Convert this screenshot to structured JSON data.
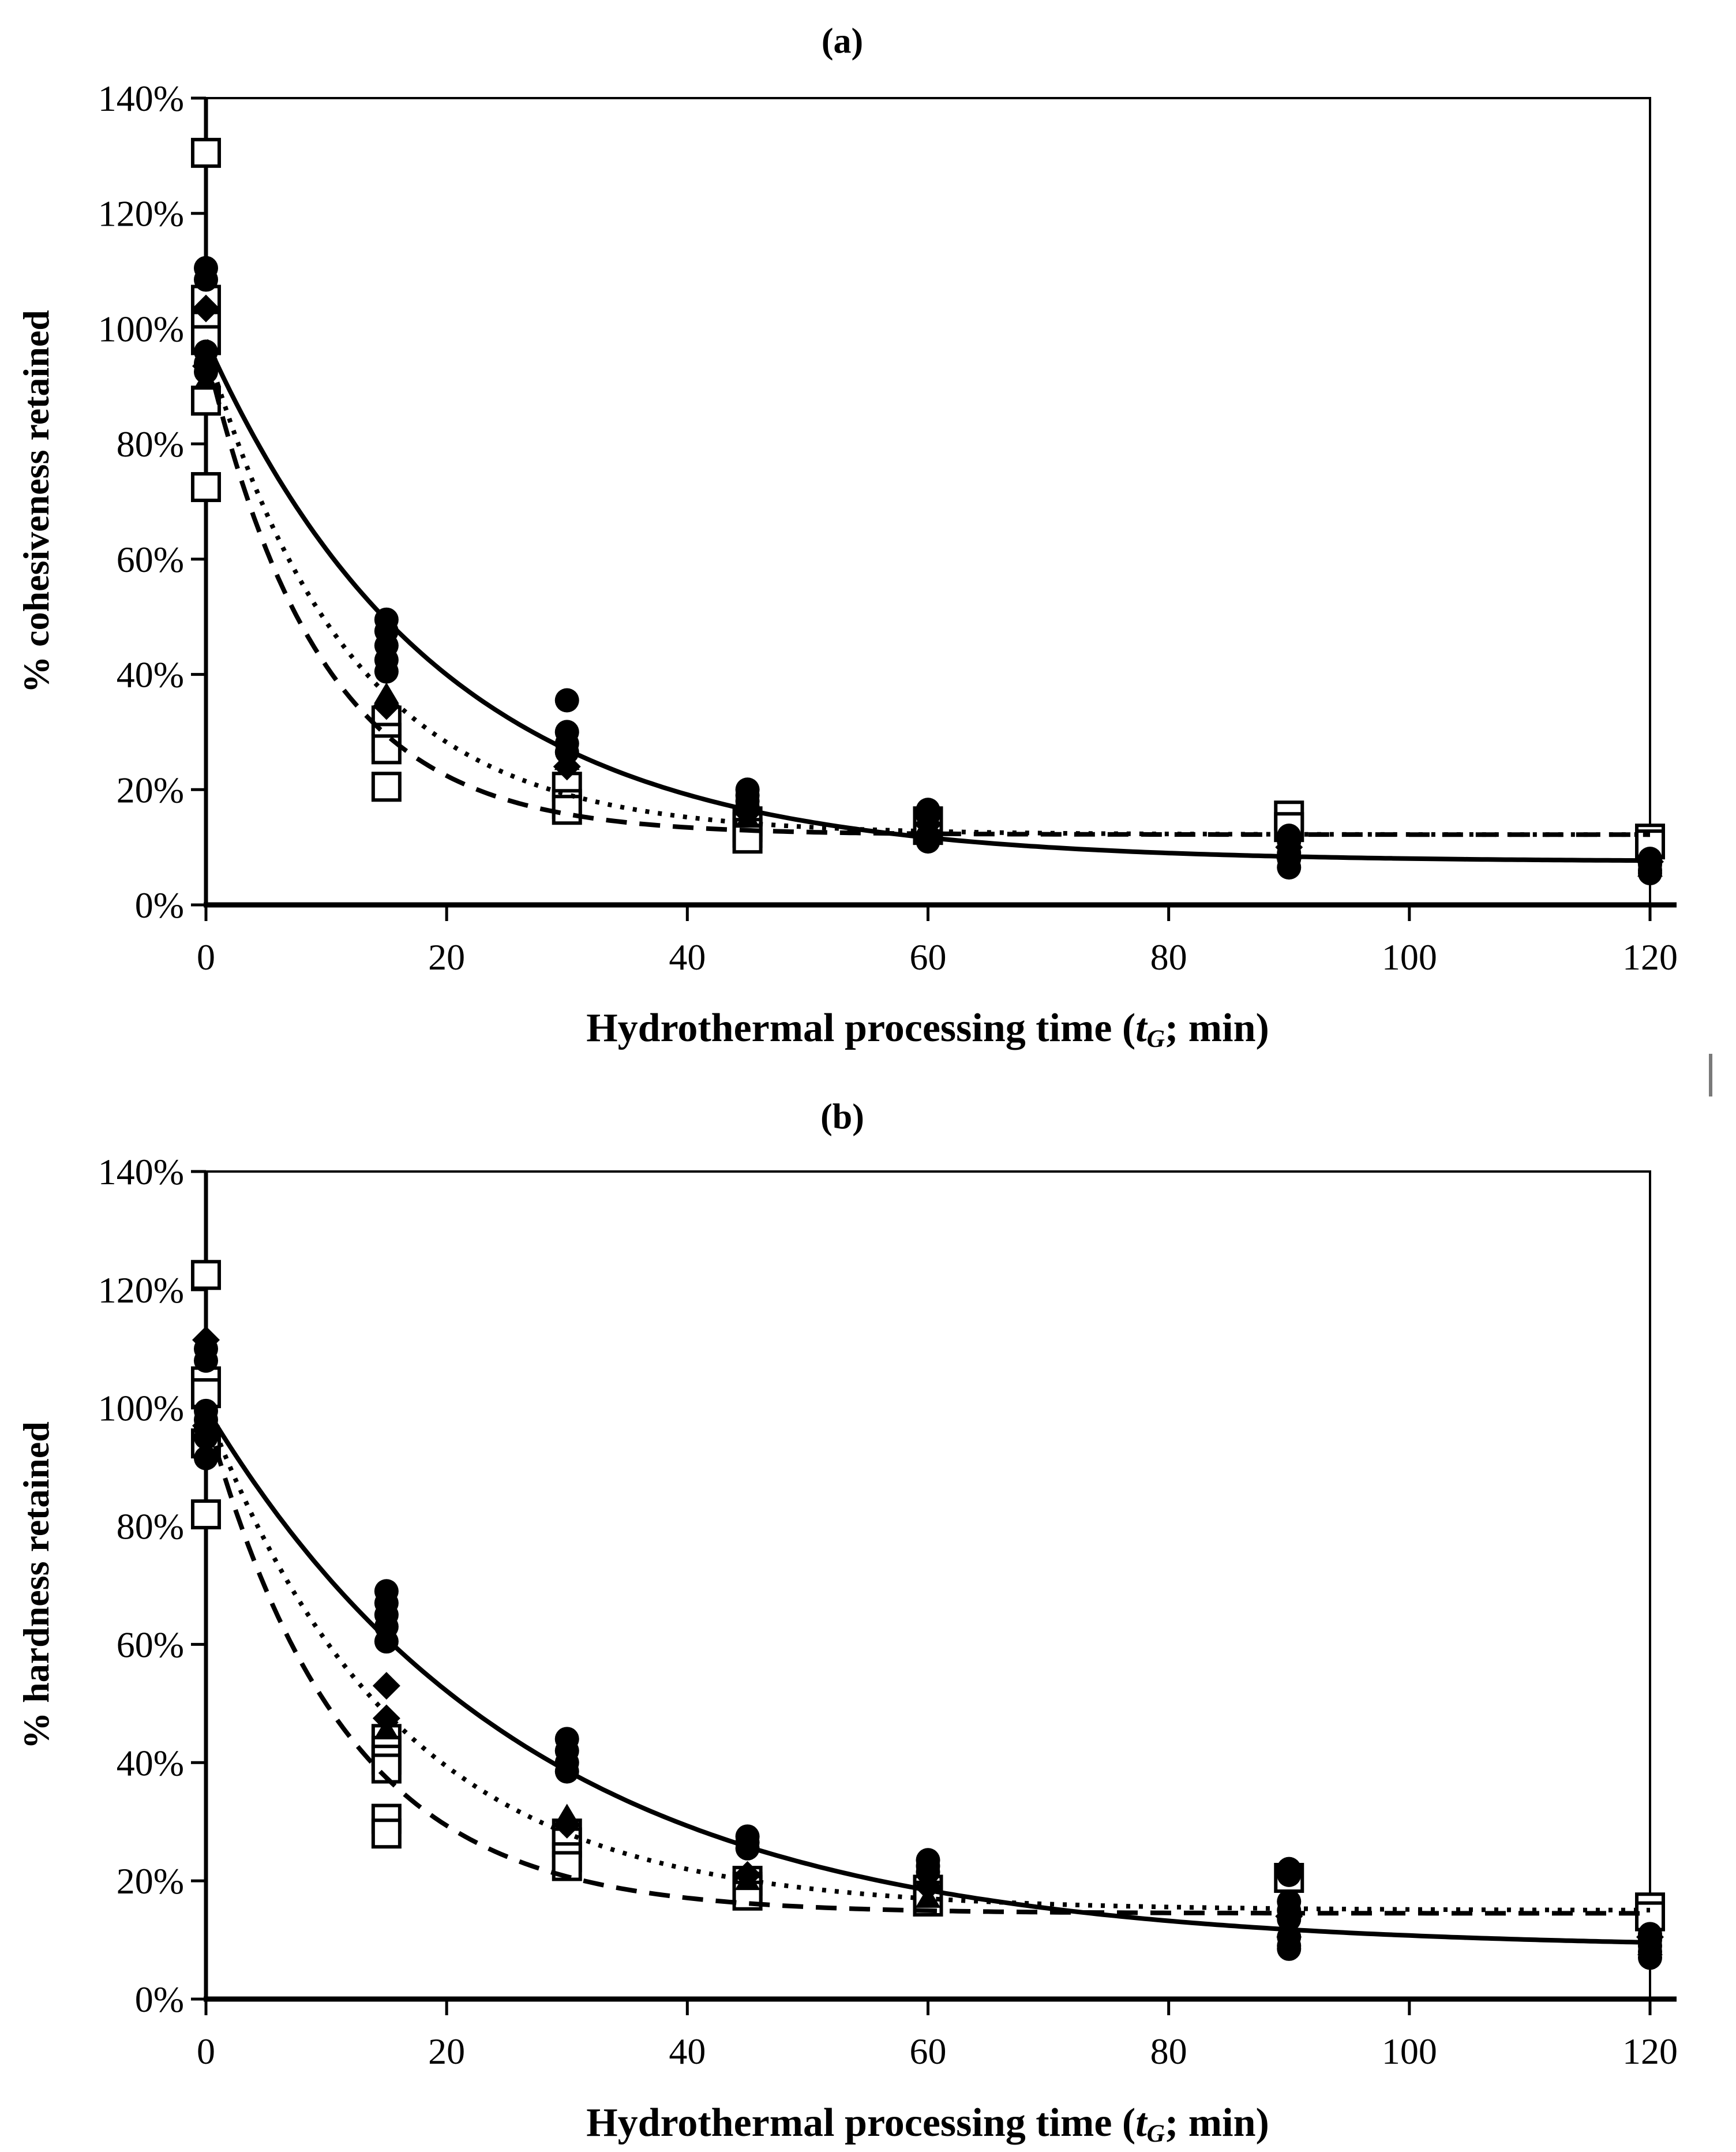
{
  "artifact": {
    "color": "#7a7a7a"
  },
  "colors": {
    "ink": "#000000",
    "background": "#ffffff"
  },
  "chart_data": [
    {
      "id": "a",
      "type": "scatter",
      "panel_label": "(a)",
      "title": "(a)",
      "xlabel": "Hydrothermal processing time (tG; min)",
      "xlabel_parts": {
        "prefix": "Hydrothermal processing time (",
        "var": "t",
        "sub": "G",
        "suffix": "; min)"
      },
      "ylabel": "% cohesiveness retained",
      "xlim": [
        0,
        120
      ],
      "ylim_percent": [
        0,
        140
      ],
      "x_ticks": [
        0,
        20,
        40,
        60,
        80,
        100,
        120
      ],
      "y_ticks": [
        "0%",
        "20%",
        "40%",
        "60%",
        "80%",
        "100%",
        "120%",
        "140%"
      ],
      "grid": false,
      "legend": "none",
      "series": [
        {
          "name": "filled-circle",
          "marker": "circle",
          "fit": "solid",
          "points": [
            [
              0,
              110.5
            ],
            [
              0,
              108.5
            ],
            [
              0,
              96
            ],
            [
              0,
              94
            ],
            [
              0,
              92.5
            ],
            [
              15,
              49.5
            ],
            [
              15,
              47.5
            ],
            [
              15,
              45
            ],
            [
              15,
              42.5
            ],
            [
              15,
              40.5
            ],
            [
              30,
              35.5
            ],
            [
              30,
              30
            ],
            [
              30,
              28
            ],
            [
              30,
              26.5
            ],
            [
              45,
              20
            ],
            [
              45,
              19
            ],
            [
              45,
              18
            ],
            [
              45,
              17
            ],
            [
              60,
              16.5
            ],
            [
              60,
              15.5
            ],
            [
              60,
              12
            ],
            [
              60,
              11
            ],
            [
              90,
              12
            ],
            [
              90,
              11
            ],
            [
              90,
              9
            ],
            [
              90,
              8
            ],
            [
              90,
              6.5
            ],
            [
              120,
              8
            ],
            [
              120,
              7
            ],
            [
              120,
              6
            ],
            [
              120,
              5.5
            ]
          ]
        },
        {
          "name": "filled-diamond",
          "marker": "diamond",
          "fit": "dotted",
          "points": [
            [
              0,
              103.5
            ],
            [
              0,
              93.5
            ],
            [
              15,
              34.5
            ],
            [
              30,
              24
            ],
            [
              45,
              16
            ],
            [
              60,
              14
            ],
            [
              90,
              10
            ],
            [
              120,
              7.5
            ]
          ]
        },
        {
          "name": "filled-triangle",
          "marker": "triangle",
          "fit": "dotted",
          "points": [
            [
              0,
              91
            ],
            [
              15,
              36.5
            ],
            [
              30,
              25
            ],
            [
              45,
              15
            ],
            [
              60,
              13.5
            ],
            [
              90,
              9.5
            ],
            [
              120,
              6.5
            ]
          ]
        },
        {
          "name": "open-square",
          "marker": "open-square",
          "fit": "dashed",
          "points": [
            [
              0,
              130.5
            ],
            [
              0,
              105
            ],
            [
              0,
              100.5
            ],
            [
              0,
              98
            ],
            [
              0,
              87.5
            ],
            [
              0,
              72.5
            ],
            [
              15,
              32
            ],
            [
              15,
              29
            ],
            [
              15,
              27
            ],
            [
              15,
              20.5
            ],
            [
              30,
              20.5
            ],
            [
              30,
              17.5
            ],
            [
              30,
              16.5
            ],
            [
              45,
              14.5
            ],
            [
              45,
              13.5
            ],
            [
              45,
              12.5
            ],
            [
              45,
              11.5
            ],
            [
              60,
              14.5
            ],
            [
              60,
              13
            ],
            [
              90,
              15.5
            ],
            [
              90,
              13.5
            ],
            [
              120,
              11.5
            ],
            [
              120,
              10.5
            ]
          ]
        }
      ],
      "fit_curves": [
        {
          "style": "dotted",
          "y0": 97,
          "yinf": 12.2,
          "tau": 12
        },
        {
          "style": "dashed",
          "y0": 96,
          "yinf": 12.2,
          "tau": 9.5
        },
        {
          "style": "solid",
          "y0": 98,
          "yinf": 7.5,
          "tau": 19.5
        }
      ]
    },
    {
      "id": "b",
      "type": "scatter",
      "panel_label": "(b)",
      "title": "(b)",
      "xlabel": "Hydrothermal processing time (tG; min)",
      "xlabel_parts": {
        "prefix": "Hydrothermal processing time (",
        "var": "t",
        "sub": "G",
        "suffix": "; min)"
      },
      "ylabel": "% hardness retained",
      "xlim": [
        0,
        120
      ],
      "ylim_percent": [
        0,
        140
      ],
      "x_ticks": [
        0,
        20,
        40,
        60,
        80,
        100,
        120
      ],
      "y_ticks": [
        "0%",
        "20%",
        "40%",
        "60%",
        "80%",
        "100%",
        "120%",
        "140%"
      ],
      "grid": false,
      "legend": "none",
      "series": [
        {
          "name": "filled-circle",
          "marker": "circle",
          "fit": "solid",
          "points": [
            [
              0,
              110
            ],
            [
              0,
              108
            ],
            [
              0,
              99.5
            ],
            [
              0,
              98
            ],
            [
              0,
              96.5
            ],
            [
              0,
              95
            ],
            [
              0,
              91.5
            ],
            [
              15,
              69
            ],
            [
              15,
              67
            ],
            [
              15,
              65
            ],
            [
              15,
              63
            ],
            [
              15,
              60.5
            ],
            [
              30,
              44
            ],
            [
              30,
              42
            ],
            [
              30,
              40
            ],
            [
              30,
              38.5
            ],
            [
              45,
              27.5
            ],
            [
              45,
              26.5
            ],
            [
              45,
              25.5
            ],
            [
              60,
              23.5
            ],
            [
              60,
              22.5
            ],
            [
              60,
              21.5
            ],
            [
              90,
              22
            ],
            [
              90,
              21
            ],
            [
              90,
              16.5
            ],
            [
              90,
              15
            ],
            [
              90,
              13.5
            ],
            [
              90,
              10.5
            ],
            [
              90,
              9
            ],
            [
              90,
              8.5
            ],
            [
              120,
              11
            ],
            [
              120,
              10
            ],
            [
              120,
              9
            ],
            [
              120,
              8
            ],
            [
              120,
              7
            ]
          ]
        },
        {
          "name": "filled-diamond",
          "marker": "diamond",
          "fit": "dotted",
          "points": [
            [
              0,
              111.5
            ],
            [
              0,
              97
            ],
            [
              15,
              53
            ],
            [
              15,
              47.5
            ],
            [
              30,
              29.5
            ],
            [
              45,
              21
            ],
            [
              60,
              19
            ],
            [
              90,
              14
            ],
            [
              120,
              10.5
            ]
          ]
        },
        {
          "name": "filled-triangle",
          "marker": "triangle",
          "fit": "dotted",
          "points": [
            [
              0,
              93
            ],
            [
              15,
              45.5
            ],
            [
              30,
              31
            ],
            [
              45,
              20
            ],
            [
              60,
              17
            ],
            [
              90,
              12
            ],
            [
              120,
              9
            ]
          ]
        },
        {
          "name": "open-square",
          "marker": "open-square",
          "fit": "dashed",
          "points": [
            [
              0,
              122.5
            ],
            [
              0,
              104.5
            ],
            [
              0,
              102.5
            ],
            [
              0,
              94
            ],
            [
              0,
              82
            ],
            [
              15,
              44
            ],
            [
              15,
              42
            ],
            [
              15,
              40.5
            ],
            [
              15,
              39
            ],
            [
              15,
              30.5
            ],
            [
              15,
              28
            ],
            [
              30,
              28
            ],
            [
              30,
              26.5
            ],
            [
              30,
              24
            ],
            [
              30,
              22.5
            ],
            [
              45,
              20
            ],
            [
              45,
              19
            ],
            [
              45,
              18.5
            ],
            [
              45,
              17.5
            ],
            [
              60,
              18.5
            ],
            [
              60,
              17.5
            ],
            [
              60,
              16.5
            ],
            [
              90,
              20.5
            ],
            [
              120,
              15.5
            ],
            [
              120,
              14
            ]
          ]
        }
      ],
      "fit_curves": [
        {
          "style": "dotted",
          "y0": 100,
          "yinf": 15,
          "tau": 16
        },
        {
          "style": "dashed",
          "y0": 99,
          "yinf": 14.5,
          "tau": 11.5
        },
        {
          "style": "solid",
          "y0": 100,
          "yinf": 8.5,
          "tau": 27
        }
      ]
    }
  ]
}
